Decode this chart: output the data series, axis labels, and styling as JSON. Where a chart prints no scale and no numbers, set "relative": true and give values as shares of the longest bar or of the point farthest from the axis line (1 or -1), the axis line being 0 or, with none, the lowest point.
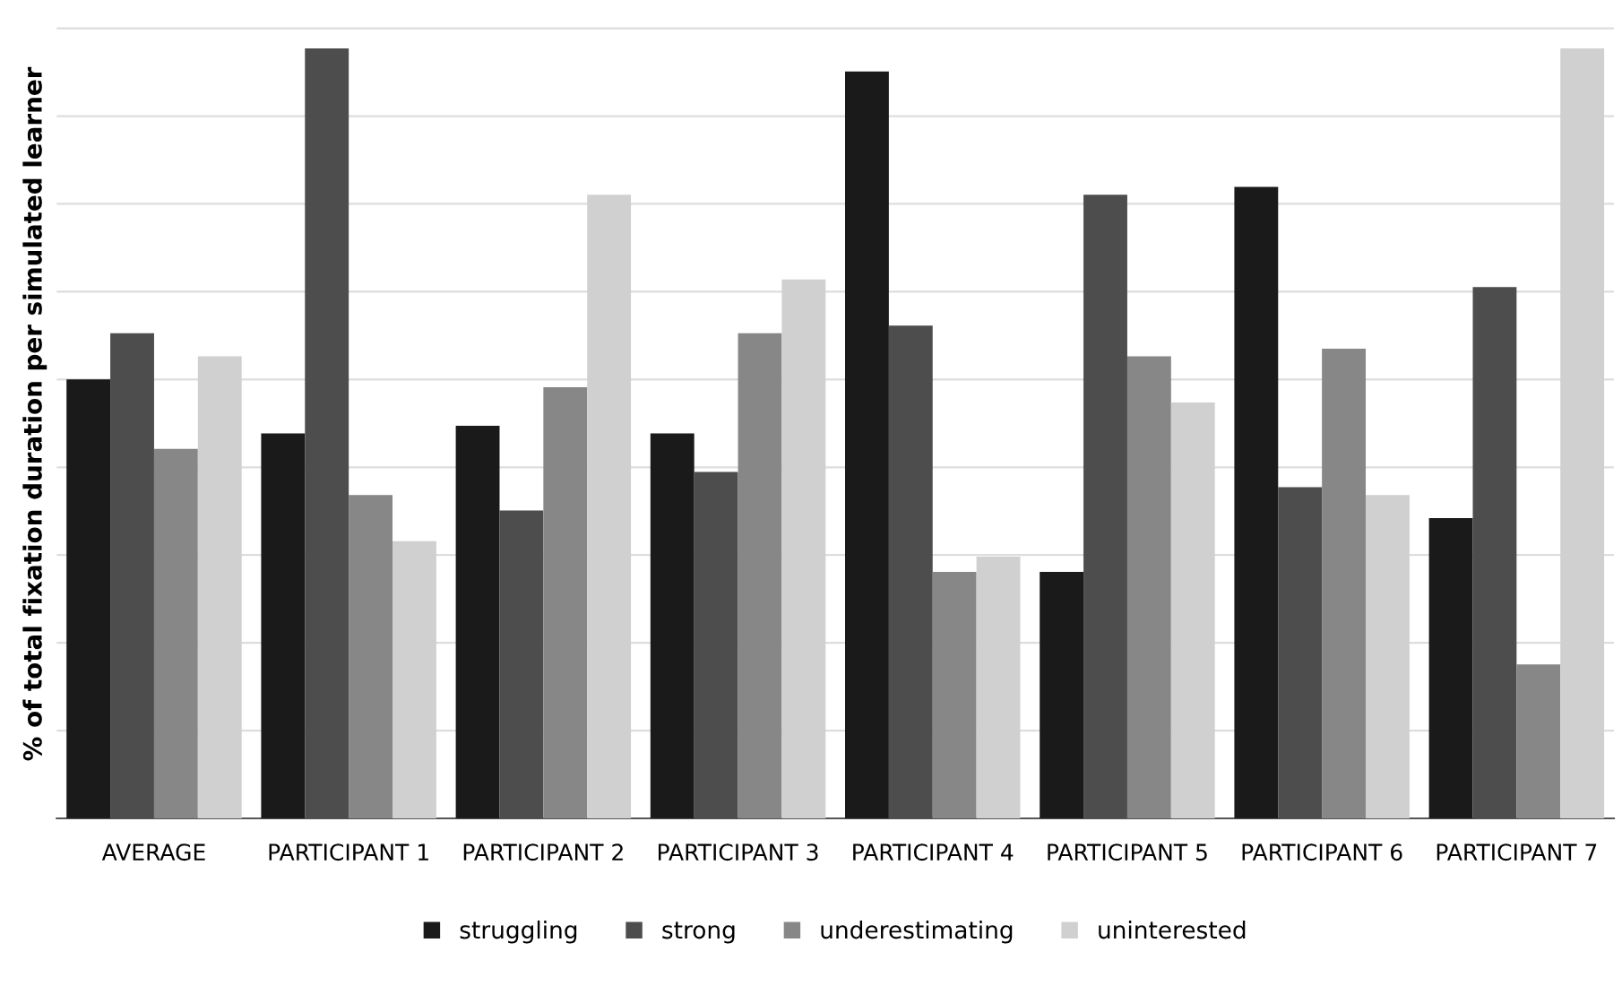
{
  "chart_data": {
    "type": "bar",
    "relative": true,
    "ylabel": "% of total fixation duration per simulated learner",
    "categories": [
      "AVERAGE",
      "PARTICIPANT 1",
      "PARTICIPANT 2",
      "PARTICIPANT 3",
      "PARTICIPANT 4",
      "PARTICIPANT 5",
      "PARTICIPANT 6",
      "PARTICIPANT 7"
    ],
    "series": [
      {
        "name": "struggling",
        "color": "#1a1a1a",
        "values": [
          0.57,
          0.5,
          0.51,
          0.5,
          0.97,
          0.32,
          0.82,
          0.39
        ]
      },
      {
        "name": "strong",
        "color": "#4d4d4d",
        "values": [
          0.63,
          1.0,
          0.4,
          0.45,
          0.64,
          0.81,
          0.43,
          0.69
        ]
      },
      {
        "name": "underestimating",
        "color": "#878787",
        "values": [
          0.48,
          0.42,
          0.56,
          0.63,
          0.32,
          0.6,
          0.61,
          0.2
        ]
      },
      {
        "name": "uninterested",
        "color": "#d0d0d0",
        "values": [
          0.6,
          0.36,
          0.81,
          0.7,
          0.34,
          0.54,
          0.42,
          1.0
        ]
      }
    ],
    "grid": "y",
    "legend": "bottom"
  }
}
